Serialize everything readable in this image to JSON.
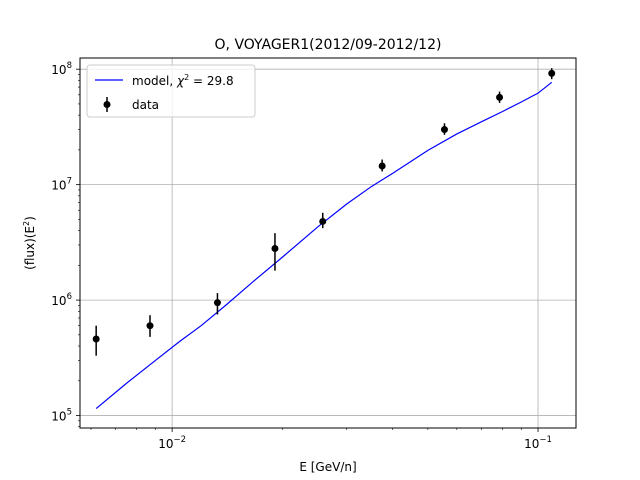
{
  "chart_data": {
    "type": "scatter",
    "title": "O, VOYAGER1(2012/09-2012/12)",
    "xlabel": "E [GeV/n]",
    "ylabel_parts": {
      "flux": "(flux)",
      "e2_base": "(E",
      "e2_sup": "2",
      "e2_close": ")"
    },
    "x_scale": "log",
    "y_scale": "log",
    "xlim": [
      0.0056,
      0.127
    ],
    "ylim": [
      78000,
      125000000
    ],
    "grid": true,
    "legend_position": "top-left",
    "x_ticks": [
      {
        "value": 0.01,
        "base": "10",
        "exp": "−2"
      },
      {
        "value": 0.1,
        "base": "10",
        "exp": "−1"
      }
    ],
    "y_ticks": [
      {
        "value": 100000,
        "base": "10",
        "exp": "5"
      },
      {
        "value": 1000000,
        "base": "10",
        "exp": "6"
      },
      {
        "value": 10000000,
        "base": "10",
        "exp": "7"
      },
      {
        "value": 100000000,
        "base": "10",
        "exp": "8"
      }
    ],
    "series": [
      {
        "name": "data",
        "kind": "errorbar",
        "color": "#000000",
        "points": [
          {
            "x": 0.0062,
            "y": 460000,
            "ylo": 330000,
            "yhi": 600000
          },
          {
            "x": 0.0087,
            "y": 600000,
            "ylo": 480000,
            "yhi": 740000
          },
          {
            "x": 0.0133,
            "y": 950000,
            "ylo": 750000,
            "yhi": 1150000
          },
          {
            "x": 0.0191,
            "y": 2800000,
            "ylo": 1800000,
            "yhi": 3800000
          },
          {
            "x": 0.0258,
            "y": 4800000,
            "ylo": 4200000,
            "yhi": 5700000
          },
          {
            "x": 0.0375,
            "y": 14500000,
            "ylo": 13000000,
            "yhi": 16500000
          },
          {
            "x": 0.0555,
            "y": 30000000,
            "ylo": 27000000,
            "yhi": 34000000
          },
          {
            "x": 0.0785,
            "y": 57000000,
            "ylo": 51000000,
            "yhi": 64000000
          },
          {
            "x": 0.109,
            "y": 92000000,
            "ylo": 82000000,
            "yhi": 102000000
          }
        ]
      },
      {
        "name_parts": {
          "prefix": "model, ",
          "chi": "χ",
          "sup": "2",
          "rest": " = 29.8"
        },
        "kind": "line",
        "color": "#0000ff",
        "x": [
          0.0062,
          0.0075,
          0.009,
          0.0105,
          0.012,
          0.014,
          0.017,
          0.02,
          0.025,
          0.03,
          0.035,
          0.04,
          0.05,
          0.06,
          0.07,
          0.08,
          0.09,
          0.1,
          0.109
        ],
        "y": [
          115000,
          190000,
          300000,
          440000,
          600000,
          900000,
          1530000,
          2350000,
          4300000,
          6800000,
          9600000,
          12500000,
          19800000,
          27500000,
          35000000,
          43000000,
          52000000,
          62000000,
          77000000
        ]
      }
    ]
  }
}
